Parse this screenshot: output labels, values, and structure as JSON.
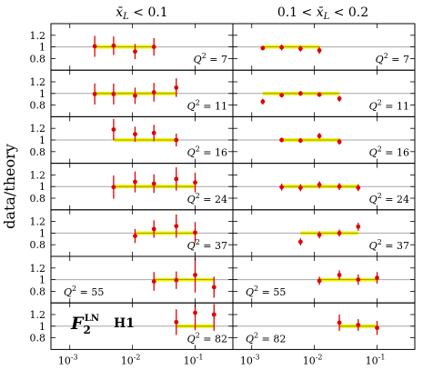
{
  "chart_data": {
    "type": "scatter",
    "title": "",
    "figure_label": "F",
    "figure_label_superscript": "LN",
    "figure_label_subscript": "2",
    "experiment": "H1",
    "ylabel": "data/theory",
    "xlabel": "",
    "x_scale": "log",
    "xlim": [
      0.0005,
      0.4
    ],
    "ylim": [
      0.6,
      1.4
    ],
    "y_ticks": [
      "0.8",
      "1",
      "1.2"
    ],
    "x_ticks": [
      "10",
      "10",
      "10"
    ],
    "x_tick_exponents": [
      "-3",
      "-2",
      "-1"
    ],
    "columns": [
      {
        "label_main": "x̄",
        "label_sub": "L",
        "label_cond": "< 0.1",
        "label_pre": ""
      },
      {
        "label_main": "x̄",
        "label_sub": "L",
        "label_cond": "< 0.2",
        "label_pre": "0.1 <"
      }
    ],
    "rows": [
      {
        "q2_text": "Q",
        "q2_sup": "2",
        "q2_value": "= 7"
      },
      {
        "q2_text": "Q",
        "q2_sup": "2",
        "q2_value": "= 11"
      },
      {
        "q2_text": "Q",
        "q2_sup": "2",
        "q2_value": "= 16"
      },
      {
        "q2_text": "Q",
        "q2_sup": "2",
        "q2_value": "= 24"
      },
      {
        "q2_text": "Q",
        "q2_sup": "2",
        "q2_value": "= 37"
      },
      {
        "q2_text": "Q",
        "q2_sup": "2",
        "q2_value": "= 55"
      },
      {
        "q2_text": "Q",
        "q2_sup": "2",
        "q2_value": "= 82"
      }
    ],
    "panels": [
      {
        "row": 0,
        "col": 0,
        "band": [
          0.0025,
          0.022
        ],
        "points": [
          {
            "x": 0.0025,
            "y": 1.01,
            "err": 0.18
          },
          {
            "x": 0.005,
            "y": 1.02,
            "err": 0.16
          },
          {
            "x": 0.011,
            "y": 0.92,
            "err": 0.13
          },
          {
            "x": 0.022,
            "y": 1.0,
            "err": 0.15
          }
        ]
      },
      {
        "row": 0,
        "col": 1,
        "band": [
          0.0015,
          0.012
        ],
        "points": [
          {
            "x": 0.0015,
            "y": 0.98,
            "err": 0.04
          },
          {
            "x": 0.003,
            "y": 0.99,
            "err": 0.05
          },
          {
            "x": 0.006,
            "y": 0.97,
            "err": 0.05
          },
          {
            "x": 0.012,
            "y": 0.94,
            "err": 0.06
          }
        ]
      },
      {
        "row": 1,
        "col": 0,
        "band": [
          0.0025,
          0.05
        ],
        "points": [
          {
            "x": 0.0025,
            "y": 0.99,
            "err": 0.18
          },
          {
            "x": 0.005,
            "y": 0.99,
            "err": 0.18
          },
          {
            "x": 0.011,
            "y": 0.96,
            "err": 0.14
          },
          {
            "x": 0.022,
            "y": 1.02,
            "err": 0.16
          },
          {
            "x": 0.05,
            "y": 1.1,
            "err": 0.16
          }
        ]
      },
      {
        "row": 1,
        "col": 1,
        "band": [
          0.0015,
          0.025
        ],
        "points": [
          {
            "x": 0.0015,
            "y": 0.86,
            "err": 0.05
          },
          {
            "x": 0.003,
            "y": 0.97,
            "err": 0.04
          },
          {
            "x": 0.006,
            "y": 1.0,
            "err": 0.04
          },
          {
            "x": 0.012,
            "y": 0.98,
            "err": 0.04
          },
          {
            "x": 0.025,
            "y": 0.91,
            "err": 0.05
          }
        ]
      },
      {
        "row": 2,
        "col": 0,
        "band": [
          0.005,
          0.05
        ],
        "points": [
          {
            "x": 0.005,
            "y": 1.18,
            "err": 0.18
          },
          {
            "x": 0.011,
            "y": 1.1,
            "err": 0.13
          },
          {
            "x": 0.022,
            "y": 1.12,
            "err": 0.14
          },
          {
            "x": 0.05,
            "y": 1.0,
            "err": 0.11
          }
        ]
      },
      {
        "row": 2,
        "col": 1,
        "band": [
          0.003,
          0.025
        ],
        "points": [
          {
            "x": 0.003,
            "y": 1.0,
            "err": 0.04
          },
          {
            "x": 0.006,
            "y": 0.99,
            "err": 0.04
          },
          {
            "x": 0.012,
            "y": 1.07,
            "err": 0.05
          },
          {
            "x": 0.025,
            "y": 0.97,
            "err": 0.05
          }
        ]
      },
      {
        "row": 3,
        "col": 0,
        "band": [
          0.005,
          0.1
        ],
        "points": [
          {
            "x": 0.005,
            "y": 0.99,
            "err": 0.2
          },
          {
            "x": 0.011,
            "y": 1.08,
            "err": 0.18
          },
          {
            "x": 0.022,
            "y": 1.05,
            "err": 0.16
          },
          {
            "x": 0.05,
            "y": 1.13,
            "err": 0.2
          },
          {
            "x": 0.1,
            "y": 1.07,
            "err": 0.17
          }
        ]
      },
      {
        "row": 3,
        "col": 1,
        "band": [
          0.003,
          0.05
        ],
        "points": [
          {
            "x": 0.003,
            "y": 0.99,
            "err": 0.06
          },
          {
            "x": 0.006,
            "y": 0.98,
            "err": 0.06
          },
          {
            "x": 0.012,
            "y": 1.03,
            "err": 0.06
          },
          {
            "x": 0.025,
            "y": 1.0,
            "err": 0.06
          },
          {
            "x": 0.05,
            "y": 0.98,
            "err": 0.06
          }
        ]
      },
      {
        "row": 4,
        "col": 0,
        "band": [
          0.011,
          0.1
        ],
        "points": [
          {
            "x": 0.011,
            "y": 0.95,
            "err": 0.12
          },
          {
            "x": 0.022,
            "y": 1.07,
            "err": 0.15
          },
          {
            "x": 0.05,
            "y": 1.12,
            "err": 0.2
          },
          {
            "x": 0.1,
            "y": 1.01,
            "err": 0.18
          }
        ]
      },
      {
        "row": 4,
        "col": 1,
        "band": [
          0.006,
          0.05
        ],
        "points": [
          {
            "x": 0.006,
            "y": 0.85,
            "err": 0.06
          },
          {
            "x": 0.012,
            "y": 0.97,
            "err": 0.06
          },
          {
            "x": 0.025,
            "y": 1.0,
            "err": 0.06
          },
          {
            "x": 0.05,
            "y": 1.11,
            "err": 0.07
          }
        ]
      },
      {
        "row": 5,
        "col": 0,
        "band": [
          0.022,
          0.2
        ],
        "points": [
          {
            "x": 0.022,
            "y": 0.97,
            "err": 0.16
          },
          {
            "x": 0.05,
            "y": 0.99,
            "err": 0.15
          },
          {
            "x": 0.1,
            "y": 1.08,
            "err": 0.3
          },
          {
            "x": 0.2,
            "y": 0.87,
            "err": 0.18
          }
        ]
      },
      {
        "row": 5,
        "col": 1,
        "band": [
          0.012,
          0.1
        ],
        "points": [
          {
            "x": 0.012,
            "y": 0.98,
            "err": 0.07
          },
          {
            "x": 0.025,
            "y": 1.08,
            "err": 0.08
          },
          {
            "x": 0.05,
            "y": 1.0,
            "err": 0.09
          },
          {
            "x": 0.1,
            "y": 1.03,
            "err": 0.1
          }
        ]
      },
      {
        "row": 6,
        "col": 0,
        "band": [
          0.05,
          0.2
        ],
        "points": [
          {
            "x": 0.05,
            "y": 1.07,
            "err": 0.22
          },
          {
            "x": 0.1,
            "y": 1.23,
            "err": 0.3
          },
          {
            "x": 0.2,
            "y": 1.2,
            "err": 0.28
          }
        ]
      },
      {
        "row": 6,
        "col": 1,
        "band": [
          0.025,
          0.1
        ],
        "points": [
          {
            "x": 0.025,
            "y": 1.06,
            "err": 0.14
          },
          {
            "x": 0.05,
            "y": 1.02,
            "err": 0.1
          },
          {
            "x": 0.1,
            "y": 0.97,
            "err": 0.12
          }
        ]
      }
    ],
    "grid": false,
    "colors": {
      "band": "#f2f200",
      "reference_line": "#a6a6a6",
      "marker": "#e00000",
      "frame": "#000000"
    }
  }
}
